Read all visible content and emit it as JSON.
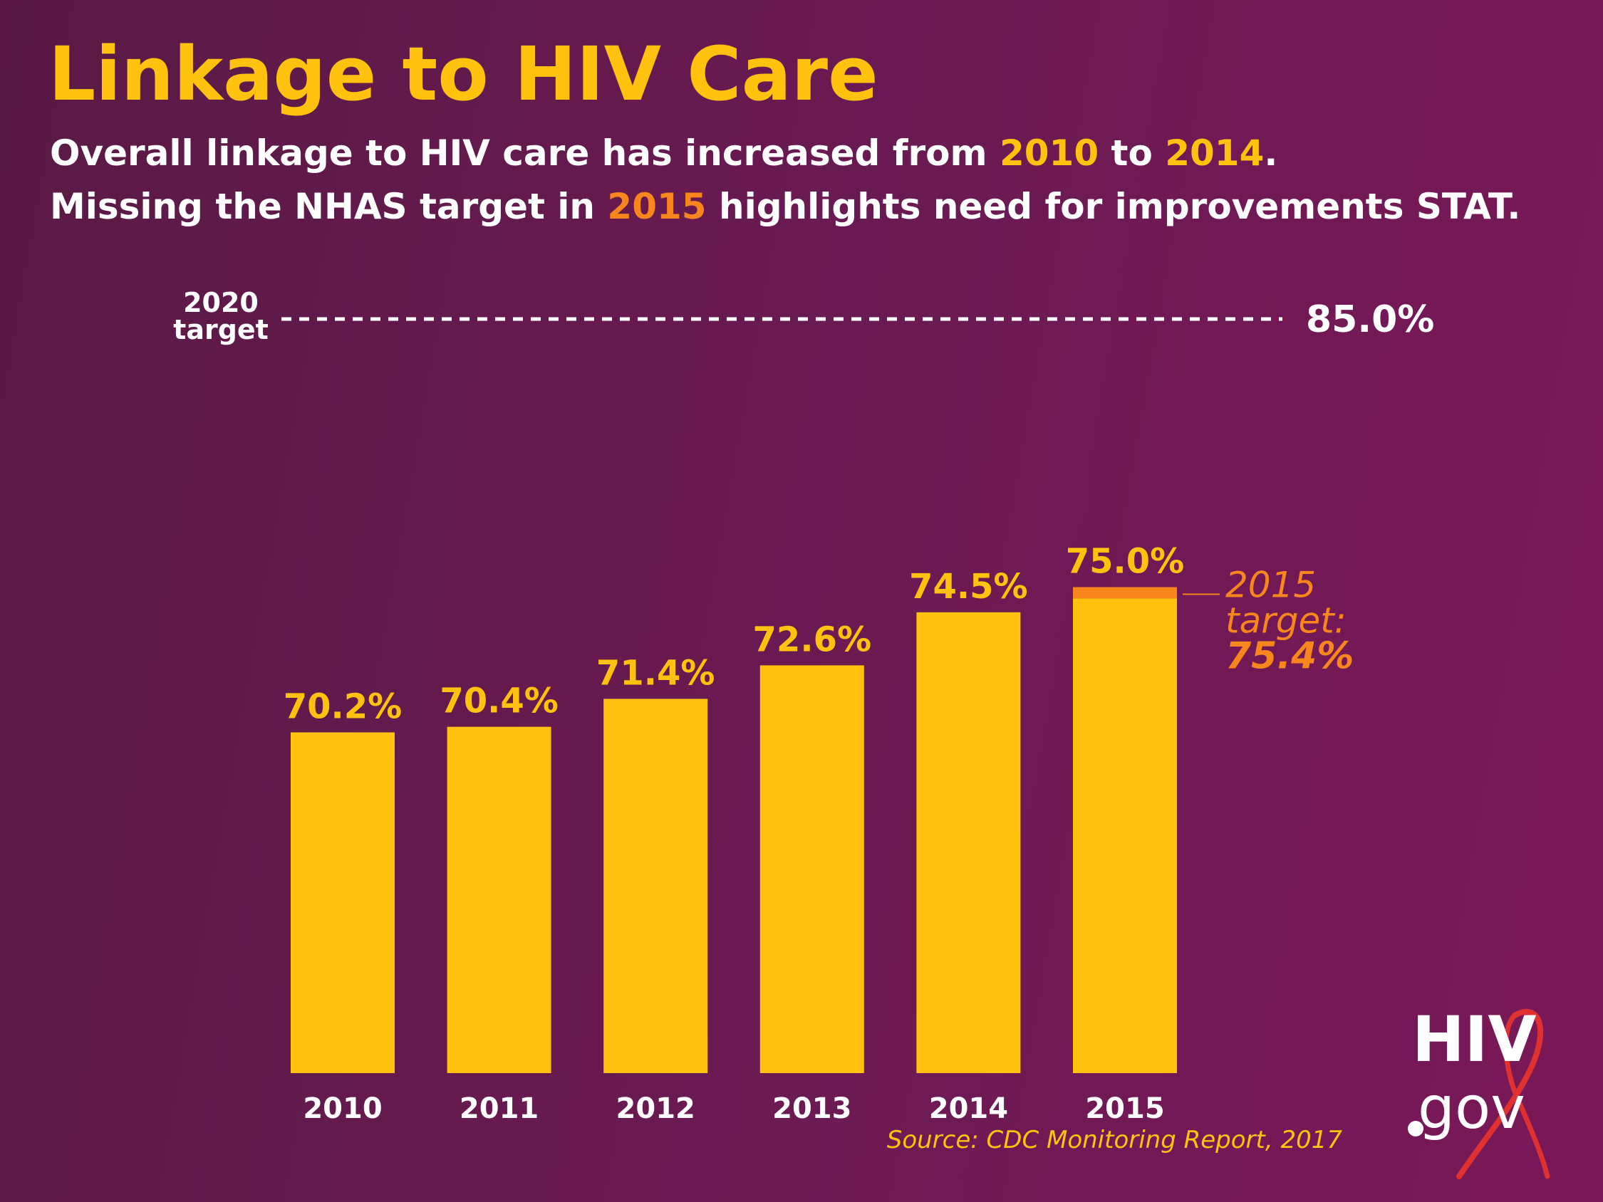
{
  "header": {
    "title": "Linkage to HIV Care",
    "line1": {
      "a": "Overall linkage to HIV care has increased from ",
      "y1": "2010",
      "b": " to ",
      "y2": "2014",
      "c": "."
    },
    "line2": {
      "a": "Missing the NHAS target in ",
      "y": "2015",
      "b": " highlights need for improvements STAT."
    }
  },
  "chart_data": {
    "type": "bar",
    "categories": [
      "2010",
      "2011",
      "2012",
      "2013",
      "2014",
      "2015"
    ],
    "values": [
      70.2,
      70.4,
      71.4,
      72.6,
      74.5,
      75.0
    ],
    "value_labels": [
      "70.2%",
      "70.4%",
      "71.4%",
      "72.6%",
      "74.5%",
      "75.0%"
    ],
    "ylim": [
      58,
      85
    ],
    "reference_line": {
      "label_line1": "2020",
      "label_line2": "target",
      "value": 85.0,
      "value_label": "85.0%"
    },
    "target_2015": {
      "category": "2015",
      "value": 75.4,
      "label_line1": "2015",
      "label_line2": "target:",
      "value_label": "75.4%"
    },
    "colors": {
      "bar": "#ffc20e",
      "target": "#f7861d",
      "reference": "#ffffff",
      "label": "#ffc20e"
    },
    "source": "Source: CDC Monitoring Report, 2017"
  },
  "logo": {
    "hiv": "HIV",
    "gov": "gov"
  }
}
